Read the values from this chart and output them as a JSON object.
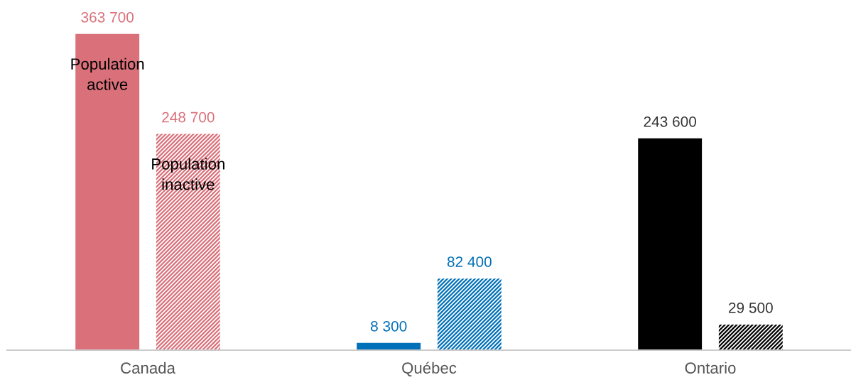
{
  "chart_data": {
    "type": "bar",
    "categories": [
      "Canada",
      "Québec",
      "Ontario"
    ],
    "series": [
      {
        "name": "Population active",
        "colors": [
          "#d9707a",
          "#0070b8",
          "#000000"
        ],
        "values": [
          363700,
          8300,
          243600
        ],
        "value_labels": [
          "363 700",
          "8 300",
          "243 600"
        ]
      },
      {
        "name": "Population inactive",
        "colors": [
          "#d9707a",
          "#0070b8",
          "#000000"
        ],
        "values": [
          248700,
          82400,
          29500
        ],
        "value_labels": [
          "248 700",
          "82 400",
          "29 500"
        ]
      }
    ],
    "grid": false,
    "legend": false
  }
}
